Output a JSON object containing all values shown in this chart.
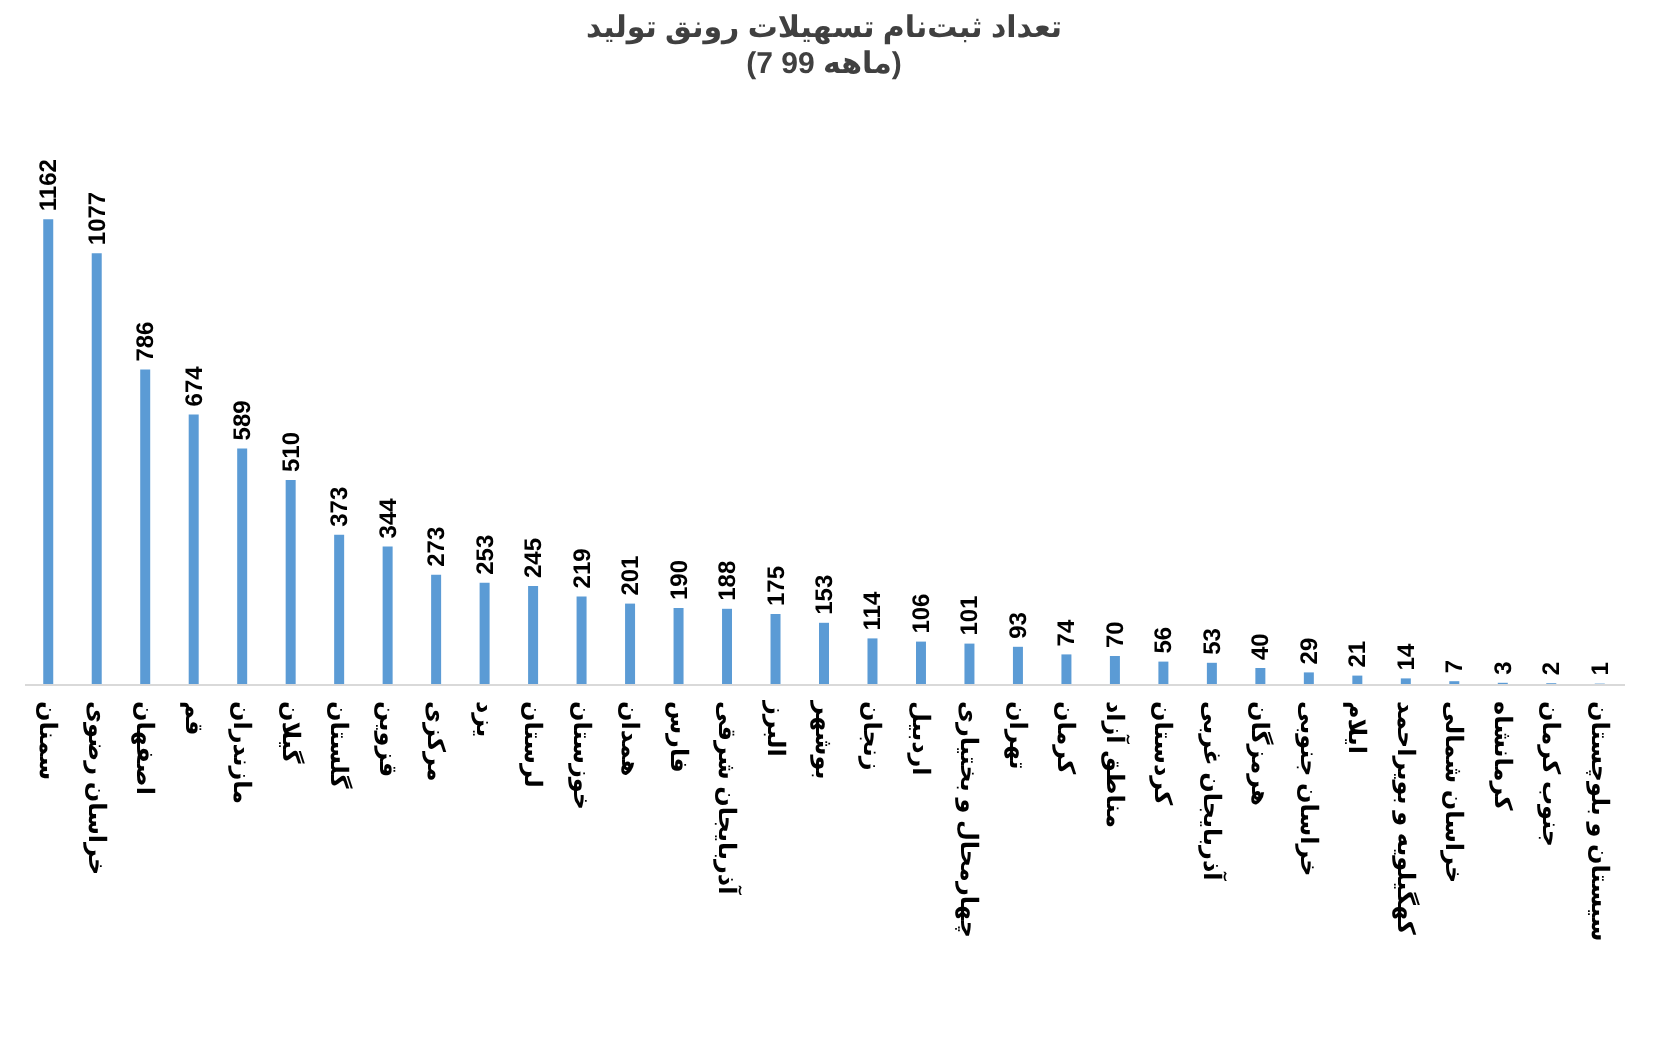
{
  "chart_data": {
    "type": "bar",
    "title": "تعداد ثبت‌نام تسهیلات رونق تولید",
    "subtitle": "(7 ماهه 99)",
    "categories": [
      "سمنان",
      "خراسان رضوی",
      "اصفهان",
      "قم",
      "مازندران",
      "گیلان",
      "گلستان",
      "قزوین",
      "مرکزی",
      "یزد",
      "لرستان",
      "خوزستان",
      "همدان",
      "فارس",
      "آذربایجان شرقی",
      "البرز",
      "بوشهر",
      "زنجان",
      "اردبیل",
      "چهارمحال و بختیاری",
      "تهران",
      "کرمان",
      "مناطق آزاد",
      "کردستان",
      "آذربایجان غربی",
      "هرمزگان",
      "خراسان جنوبی",
      "ایلام",
      "کهگیلویه و بویراحمد",
      "خراسان شمالی",
      "کرمانشاه",
      "جنوب کرمان",
      "سیستان و بلوچستان"
    ],
    "values": [
      1162,
      1077,
      786,
      674,
      589,
      510,
      373,
      344,
      273,
      253,
      245,
      219,
      201,
      190,
      188,
      175,
      153,
      114,
      106,
      101,
      93,
      74,
      70,
      56,
      53,
      40,
      29,
      21,
      14,
      7,
      3,
      2,
      1
    ],
    "color": "#5b9bd5",
    "data_labels": true
  }
}
